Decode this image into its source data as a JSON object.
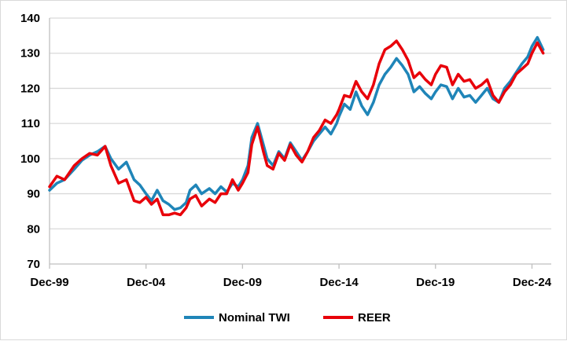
{
  "chart_data": {
    "type": "line",
    "title": "",
    "xlabel": "",
    "ylabel": "",
    "ylim": [
      70,
      140
    ],
    "yticks": [
      70,
      80,
      90,
      100,
      110,
      120,
      130,
      140
    ],
    "xticks": [
      "Dec-99",
      "Dec-04",
      "Dec-09",
      "Dec-14",
      "Dec-19",
      "Dec-24"
    ],
    "xlim": [
      1999.92,
      2025.92
    ],
    "grid": "horizontal",
    "legend_position": "bottom",
    "series": [
      {
        "name": "Nominal TWI",
        "color": "#1f85b8",
        "points": [
          [
            1999.92,
            91
          ],
          [
            2000.3,
            93
          ],
          [
            2000.7,
            94
          ],
          [
            2001.2,
            97
          ],
          [
            2001.6,
            99.5
          ],
          [
            2002.0,
            101
          ],
          [
            2002.4,
            102
          ],
          [
            2002.8,
            103.5
          ],
          [
            2003.1,
            100
          ],
          [
            2003.5,
            97
          ],
          [
            2003.9,
            99
          ],
          [
            2004.3,
            94
          ],
          [
            2004.6,
            92.5
          ],
          [
            2004.92,
            90
          ],
          [
            2005.2,
            88
          ],
          [
            2005.5,
            91
          ],
          [
            2005.8,
            88
          ],
          [
            2006.1,
            87
          ],
          [
            2006.4,
            85.5
          ],
          [
            2006.7,
            86
          ],
          [
            2007.0,
            87.5
          ],
          [
            2007.2,
            91
          ],
          [
            2007.5,
            92.5
          ],
          [
            2007.8,
            90
          ],
          [
            2008.2,
            91.5
          ],
          [
            2008.5,
            90
          ],
          [
            2008.8,
            92
          ],
          [
            2009.1,
            90.5
          ],
          [
            2009.4,
            93
          ],
          [
            2009.7,
            92
          ],
          [
            2009.92,
            94
          ],
          [
            2010.2,
            98
          ],
          [
            2010.4,
            106
          ],
          [
            2010.7,
            110
          ],
          [
            2011.0,
            104
          ],
          [
            2011.2,
            100
          ],
          [
            2011.5,
            98
          ],
          [
            2011.8,
            102
          ],
          [
            2012.1,
            100
          ],
          [
            2012.4,
            104.5
          ],
          [
            2012.7,
            102
          ],
          [
            2013.0,
            99.5
          ],
          [
            2013.3,
            102
          ],
          [
            2013.6,
            105
          ],
          [
            2013.9,
            107
          ],
          [
            2014.2,
            109
          ],
          [
            2014.5,
            107
          ],
          [
            2014.8,
            110
          ],
          [
            2014.92,
            112
          ],
          [
            2015.2,
            115.5
          ],
          [
            2015.5,
            114
          ],
          [
            2015.8,
            119
          ],
          [
            2016.1,
            115
          ],
          [
            2016.4,
            112.5
          ],
          [
            2016.7,
            116
          ],
          [
            2017.0,
            121
          ],
          [
            2017.3,
            124
          ],
          [
            2017.6,
            126
          ],
          [
            2017.9,
            128.5
          ],
          [
            2018.2,
            126.5
          ],
          [
            2018.5,
            124
          ],
          [
            2018.8,
            119
          ],
          [
            2019.1,
            120.5
          ],
          [
            2019.4,
            118.5
          ],
          [
            2019.7,
            117
          ],
          [
            2019.92,
            119
          ],
          [
            2020.2,
            121
          ],
          [
            2020.5,
            120.5
          ],
          [
            2020.8,
            117
          ],
          [
            2021.1,
            120
          ],
          [
            2021.4,
            117.5
          ],
          [
            2021.7,
            118
          ],
          [
            2022.0,
            116
          ],
          [
            2022.3,
            118
          ],
          [
            2022.6,
            120
          ],
          [
            2022.9,
            117
          ],
          [
            2023.2,
            116
          ],
          [
            2023.5,
            120
          ],
          [
            2023.8,
            122
          ],
          [
            2024.1,
            124.5
          ],
          [
            2024.4,
            127
          ],
          [
            2024.7,
            129
          ],
          [
            2024.92,
            132
          ],
          [
            2025.2,
            134.5
          ],
          [
            2025.5,
            131
          ]
        ]
      },
      {
        "name": "REER",
        "color": "#e8000a",
        "points": [
          [
            1999.92,
            92
          ],
          [
            2000.3,
            95
          ],
          [
            2000.7,
            94
          ],
          [
            2001.2,
            98
          ],
          [
            2001.6,
            100
          ],
          [
            2002.0,
            101.5
          ],
          [
            2002.4,
            101
          ],
          [
            2002.8,
            103.5
          ],
          [
            2003.1,
            98
          ],
          [
            2003.5,
            93
          ],
          [
            2003.9,
            94
          ],
          [
            2004.3,
            88
          ],
          [
            2004.6,
            87.5
          ],
          [
            2004.92,
            89
          ],
          [
            2005.2,
            87
          ],
          [
            2005.5,
            88.5
          ],
          [
            2005.8,
            84
          ],
          [
            2006.1,
            84
          ],
          [
            2006.4,
            84.5
          ],
          [
            2006.7,
            84
          ],
          [
            2007.0,
            86
          ],
          [
            2007.2,
            88.5
          ],
          [
            2007.5,
            89.5
          ],
          [
            2007.8,
            86.5
          ],
          [
            2008.2,
            88.5
          ],
          [
            2008.5,
            87.5
          ],
          [
            2008.8,
            90
          ],
          [
            2009.1,
            90
          ],
          [
            2009.4,
            94
          ],
          [
            2009.7,
            91
          ],
          [
            2009.92,
            93
          ],
          [
            2010.2,
            96
          ],
          [
            2010.4,
            104
          ],
          [
            2010.7,
            109
          ],
          [
            2011.0,
            102
          ],
          [
            2011.2,
            98
          ],
          [
            2011.5,
            97
          ],
          [
            2011.8,
            101.5
          ],
          [
            2012.1,
            99.5
          ],
          [
            2012.4,
            104
          ],
          [
            2012.7,
            101
          ],
          [
            2013.0,
            99
          ],
          [
            2013.3,
            102
          ],
          [
            2013.6,
            106
          ],
          [
            2013.9,
            108
          ],
          [
            2014.2,
            111
          ],
          [
            2014.5,
            110
          ],
          [
            2014.8,
            112.5
          ],
          [
            2014.92,
            114
          ],
          [
            2015.2,
            118
          ],
          [
            2015.5,
            117.5
          ],
          [
            2015.8,
            122
          ],
          [
            2016.1,
            119
          ],
          [
            2016.4,
            117
          ],
          [
            2016.7,
            121
          ],
          [
            2017.0,
            127
          ],
          [
            2017.3,
            131
          ],
          [
            2017.6,
            132
          ],
          [
            2017.9,
            133.5
          ],
          [
            2018.2,
            131
          ],
          [
            2018.5,
            128
          ],
          [
            2018.8,
            123
          ],
          [
            2019.1,
            124.5
          ],
          [
            2019.4,
            122.5
          ],
          [
            2019.7,
            121
          ],
          [
            2019.92,
            124
          ],
          [
            2020.2,
            126.5
          ],
          [
            2020.5,
            126
          ],
          [
            2020.8,
            121
          ],
          [
            2021.1,
            124
          ],
          [
            2021.4,
            122
          ],
          [
            2021.7,
            122.5
          ],
          [
            2022.0,
            120
          ],
          [
            2022.3,
            121
          ],
          [
            2022.6,
            122.5
          ],
          [
            2022.9,
            118
          ],
          [
            2023.2,
            116
          ],
          [
            2023.5,
            119
          ],
          [
            2023.8,
            121
          ],
          [
            2024.1,
            124
          ],
          [
            2024.4,
            125.5
          ],
          [
            2024.7,
            127
          ],
          [
            2024.92,
            130
          ],
          [
            2025.2,
            133
          ],
          [
            2025.5,
            130
          ]
        ]
      }
    ]
  }
}
